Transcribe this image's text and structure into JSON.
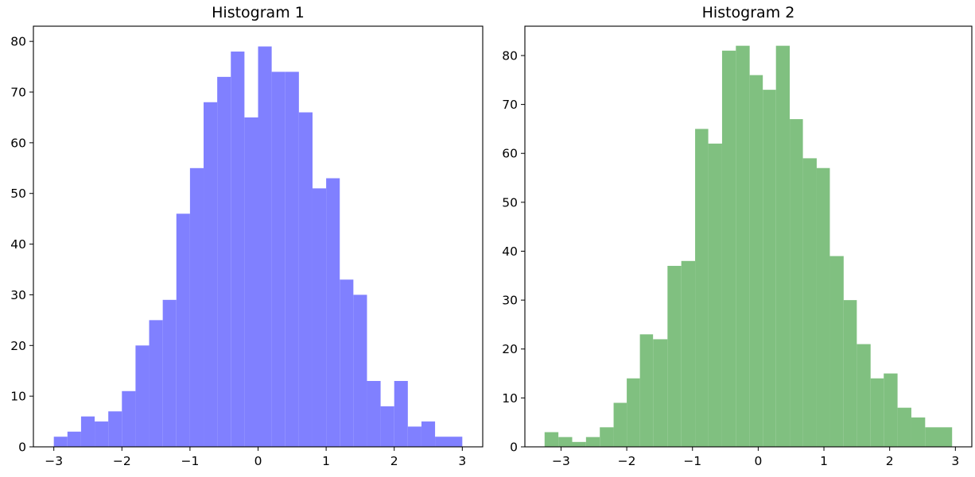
{
  "chart_data": [
    {
      "type": "bar",
      "title": "Histogram 1",
      "xlabel": "",
      "ylabel": "",
      "color": "#8080ff",
      "xlim": [
        -3.3,
        3.3
      ],
      "ylim": [
        0,
        83
      ],
      "x_ticks": [
        -3,
        -2,
        -1,
        0,
        1,
        2,
        3
      ],
      "x_tick_labels": [
        "−3",
        "−2",
        "−1",
        "0",
        "1",
        "2",
        "3"
      ],
      "y_ticks": [
        0,
        10,
        20,
        30,
        40,
        50,
        60,
        70,
        80
      ],
      "y_tick_labels": [
        "0",
        "10",
        "20",
        "30",
        "40",
        "50",
        "60",
        "70",
        "80"
      ],
      "grid": false,
      "bin_edges": [
        -3.0,
        -2.8,
        -2.6,
        -2.4,
        -2.2,
        -2.0,
        -1.8,
        -1.6,
        -1.4,
        -1.2,
        -1.0,
        -0.8,
        -0.6,
        -0.4,
        -0.2,
        0.0,
        0.2,
        0.4,
        0.6,
        0.8,
        1.0,
        1.2,
        1.4,
        1.6,
        1.8,
        2.0,
        2.2,
        2.4,
        2.6,
        3.0
      ],
      "values": [
        2,
        3,
        6,
        5,
        7,
        11,
        20,
        25,
        29,
        46,
        55,
        68,
        73,
        78,
        65,
        79,
        74,
        74,
        66,
        51,
        53,
        33,
        30,
        13,
        8,
        13,
        4,
        5,
        2
      ]
    },
    {
      "type": "bar",
      "title": "Histogram 2",
      "xlabel": "",
      "ylabel": "",
      "color": "#80c080",
      "xlim": [
        -3.55,
        3.25
      ],
      "ylim": [
        0,
        86
      ],
      "x_ticks": [
        -3,
        -2,
        -1,
        0,
        1,
        2,
        3
      ],
      "x_tick_labels": [
        "−3",
        "−2",
        "−1",
        "0",
        "1",
        "2",
        "3"
      ],
      "y_ticks": [
        0,
        10,
        20,
        30,
        40,
        50,
        60,
        70,
        80
      ],
      "y_tick_labels": [
        "0",
        "10",
        "20",
        "30",
        "40",
        "50",
        "60",
        "70",
        "80"
      ],
      "grid": false,
      "bin_edges": [
        -3.25,
        -3.04,
        -2.83,
        -2.62,
        -2.41,
        -2.2,
        -2.0,
        -1.8,
        -1.6,
        -1.38,
        -1.17,
        -0.96,
        -0.76,
        -0.55,
        -0.34,
        -0.13,
        0.07,
        0.27,
        0.48,
        0.68,
        0.89,
        1.09,
        1.3,
        1.5,
        1.71,
        1.91,
        2.12,
        2.33,
        2.54,
        2.95
      ],
      "values": [
        3,
        2,
        1,
        2,
        4,
        9,
        14,
        23,
        22,
        37,
        38,
        65,
        62,
        81,
        82,
        76,
        73,
        82,
        67,
        59,
        57,
        39,
        30,
        21,
        14,
        15,
        8,
        6,
        4
      ]
    }
  ]
}
